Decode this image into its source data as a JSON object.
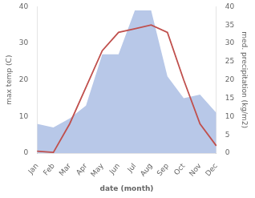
{
  "chart_data": {
    "type": "line",
    "categories": [
      "Jan",
      "Feb",
      "Mar",
      "Apr",
      "May",
      "Jun",
      "Jul",
      "Aug",
      "Sep",
      "Oct",
      "Nov",
      "Dec"
    ],
    "series": [
      {
        "type": "area",
        "color": "#b8c8e8",
        "axis": "y2",
        "values": [
          8,
          7,
          9.5,
          13,
          27,
          27,
          39,
          39,
          21,
          15,
          16,
          11
        ]
      },
      {
        "type": "line",
        "color": "#c0504d",
        "values": [
          0.5,
          0.2,
          8,
          18,
          28,
          33,
          34,
          35,
          33,
          20,
          8,
          2
        ]
      }
    ],
    "xlabel": "date (month)",
    "ylabel": "max temp (C)",
    "y2label": "med. precipitation (kg/m2)",
    "ylim": [
      0,
      40
    ],
    "yticks": [
      0,
      10,
      20,
      30,
      40
    ],
    "y2lim": [
      0,
      40
    ],
    "y2ticks": [
      0,
      5,
      10,
      15,
      20,
      25,
      30,
      35,
      40
    ],
    "grid": false
  }
}
